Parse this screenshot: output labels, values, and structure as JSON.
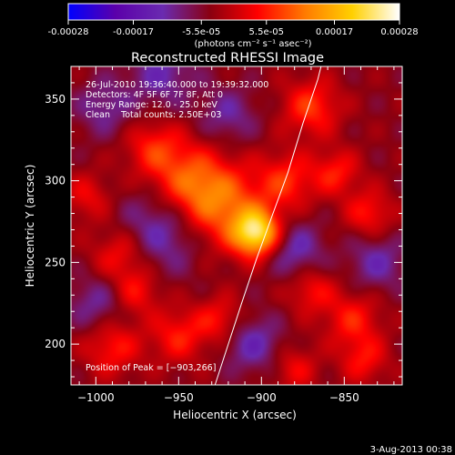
{
  "colorbar": {
    "ticks": [
      "-0.00028",
      "-0.00017",
      "-5.5e-05",
      "5.5e-05",
      "0.00017",
      "0.00028"
    ],
    "tick_values": [
      -0.00028,
      -0.00017,
      -5.5e-05,
      5.5e-05,
      0.00017,
      0.00028
    ],
    "range": [
      -0.00028,
      0.00028
    ],
    "units_text": "(photons cm⁻² s⁻¹ asec⁻²)",
    "colormap": [
      "#0000ff",
      "#5b00aa",
      "#6a2ab0",
      "#8a0010",
      "#ff0000",
      "#ff7a00",
      "#ffd000",
      "#ffffff"
    ]
  },
  "chart_data": {
    "type": "heatmap",
    "title": "Reconstructed RHESSI Image",
    "xlabel": "Heliocentric X (arcsec)",
    "ylabel": "Heliocentric Y (arcsec)",
    "xlim": [
      -1015,
      -815
    ],
    "ylim": [
      175,
      370
    ],
    "x_ticks": [
      -1000,
      -950,
      -900,
      -850
    ],
    "y_ticks": [
      200,
      250,
      300,
      350
    ],
    "x_tick_labels": [
      "−1000",
      "−950",
      "−900",
      "−850"
    ],
    "y_tick_labels": [
      "200",
      "250",
      "300",
      "350"
    ],
    "peak": [
      -903,
      266
    ],
    "info_lines": [
      "26-Jul-2010 19:36:40.000 to 19:39:32.000",
      "Detectors: 4F 5F 6F 7F 8F, Att 0",
      "Energy Range: 12.0 - 25.0 keV",
      "Clean    Total counts: 2.50E+03"
    ],
    "peak_label": "Position of Peak = [−903,266]",
    "limb_curve": [
      [
        -928,
        175
      ],
      [
        -920,
        200
      ],
      [
        -912,
        225
      ],
      [
        -903,
        252
      ],
      [
        -893,
        280
      ],
      [
        -884,
        305
      ],
      [
        -875,
        335
      ],
      [
        -866,
        362
      ],
      [
        -864,
        370
      ]
    ],
    "blobs": [
      {
        "x": -903,
        "y": 268,
        "w": 0.00026,
        "s": 10
      },
      {
        "x": -925,
        "y": 285,
        "w": 0.00014,
        "s": 18
      },
      {
        "x": -945,
        "y": 300,
        "w": 0.00011,
        "s": 16
      },
      {
        "x": -965,
        "y": 320,
        "w": 9e-05,
        "s": 12
      },
      {
        "x": -885,
        "y": 300,
        "w": 0.0001,
        "s": 12
      },
      {
        "x": -870,
        "y": 345,
        "w": 0.00011,
        "s": 12
      },
      {
        "x": -855,
        "y": 305,
        "w": 9e-05,
        "s": 10
      },
      {
        "x": -835,
        "y": 280,
        "w": 9e-05,
        "s": 10
      },
      {
        "x": -985,
        "y": 255,
        "w": 9e-05,
        "s": 12
      },
      {
        "x": -975,
        "y": 232,
        "w": 8e-05,
        "s": 10
      },
      {
        "x": -990,
        "y": 198,
        "w": 9e-05,
        "s": 12
      },
      {
        "x": -950,
        "y": 205,
        "w": 9e-05,
        "s": 12
      },
      {
        "x": -925,
        "y": 215,
        "w": 8e-05,
        "s": 10
      },
      {
        "x": -870,
        "y": 233,
        "w": 8e-05,
        "s": 10
      },
      {
        "x": -845,
        "y": 215,
        "w": 9e-05,
        "s": 12
      },
      {
        "x": -838,
        "y": 190,
        "w": 8e-05,
        "s": 10
      },
      {
        "x": -880,
        "y": 185,
        "w": 7e-05,
        "s": 10
      },
      {
        "x": -1005,
        "y": 290,
        "w": 7e-05,
        "s": 10
      },
      {
        "x": -960,
        "y": 270,
        "w": -0.0001,
        "s": 18
      },
      {
        "x": -880,
        "y": 258,
        "w": -9e-05,
        "s": 12
      },
      {
        "x": -960,
        "y": 365,
        "w": -8e-05,
        "s": 14
      },
      {
        "x": -905,
        "y": 200,
        "w": -9e-05,
        "s": 12
      },
      {
        "x": -830,
        "y": 250,
        "w": -8e-05,
        "s": 12
      },
      {
        "x": -1000,
        "y": 225,
        "w": -7e-05,
        "s": 12
      },
      {
        "x": -995,
        "y": 345,
        "w": -7e-05,
        "s": 12
      },
      {
        "x": -920,
        "y": 340,
        "w": -7e-05,
        "s": 12
      }
    ]
  },
  "footer": {
    "timestamp": "3-Aug-2013 00:38"
  }
}
